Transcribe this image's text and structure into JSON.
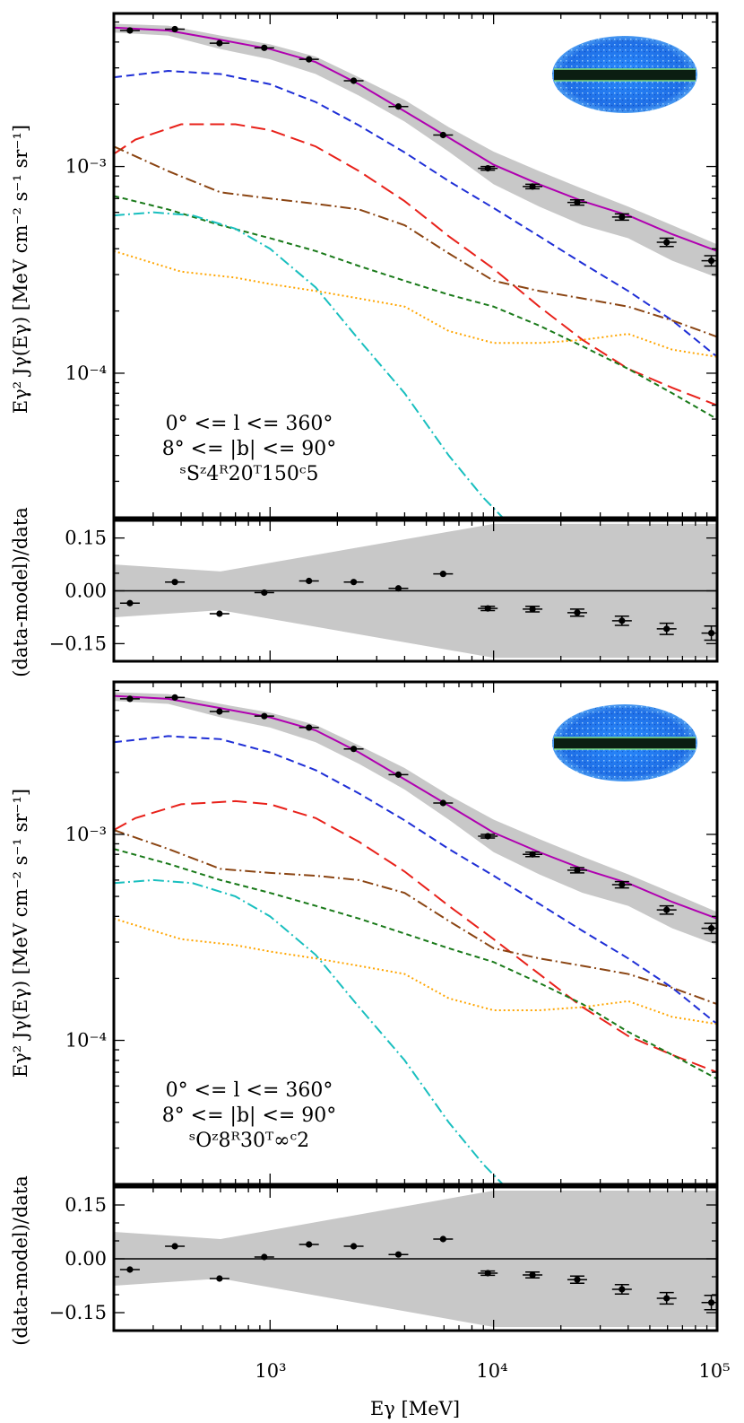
{
  "figure": {
    "xlabel": "Eγ [MeV]",
    "ylabel_spectrum": "Eγ² Jγ(Eγ) [MeV cm⁻² s⁻¹ sr⁻¹]",
    "ylabel_residual": "(data-model)/data",
    "x_tick_labels": [
      "10³",
      "10⁴",
      "10⁵"
    ],
    "y_tick_labels_spectrum": [
      "10⁻³",
      "10⁻⁴"
    ],
    "y_tick_labels_residual": [
      "0.15",
      "0.00",
      "−0.15"
    ],
    "colors": {
      "total": "#b000b0",
      "pion": "#1f2fd6",
      "ic": "#e8211a",
      "isotropic": "#8b4513",
      "bremss": "#1a7a1a",
      "sources": "#19bfbf",
      "other": "#ffa500",
      "band": "#c8c8c8",
      "points": "#000000"
    }
  },
  "chart_data": [
    {
      "type": "line",
      "title": "",
      "xlabel": "Eγ [MeV]",
      "ylabel": "Eγ² Jγ(Eγ) [MeV cm⁻² s⁻¹ sr⁻¹]",
      "xscale": "log",
      "yscale": "log",
      "xlim": [
        200,
        100000
      ],
      "ylim": [
        2e-05,
        0.0055
      ],
      "annotation": [
        "0° <= l <= 360°",
        "8° <= |b| <= 90°",
        "ˢSᶻ4ᴿ20ᵀ150ᶜ5"
      ],
      "inset": "all-sky map",
      "band": {
        "x": [
          200,
          350,
          600,
          1000,
          1600,
          2500,
          4000,
          6300,
          10000,
          16000,
          25000,
          40000,
          63000,
          100000
        ],
        "low": [
          0.00445,
          0.0043,
          0.0037,
          0.0033,
          0.0028,
          0.0022,
          0.00165,
          0.00118,
          0.00082,
          0.00064,
          0.00052,
          0.00045,
          0.00035,
          0.00029
        ],
        "high": [
          0.0049,
          0.0048,
          0.0043,
          0.0039,
          0.0034,
          0.0027,
          0.0021,
          0.00155,
          0.00118,
          0.00095,
          0.00078,
          0.00064,
          0.00052,
          0.00042
        ]
      },
      "points": {
        "x": [
          236,
          375,
          594,
          942,
          1493,
          2366,
          3751,
          5945,
          9423,
          14935,
          23671,
          37517,
          59461,
          94240
        ],
        "y": [
          0.00455,
          0.00462,
          0.00395,
          0.00375,
          0.0033,
          0.0026,
          0.00195,
          0.00142,
          0.00098,
          0.0008,
          0.00067,
          0.00057,
          0.00043,
          0.00035
        ],
        "err": [
          6e-05,
          6e-05,
          5e-05,
          5e-05,
          4e-05,
          3e-05,
          3e-05,
          2e-05,
          2e-05,
          2e-05,
          2e-05,
          2e-05,
          2e-05,
          2e-05
        ]
      },
      "series": [
        {
          "name": "total",
          "color": "#b000b0",
          "style": "solid",
          "x": [
            200,
            350,
            600,
            1000,
            1600,
            2500,
            4000,
            6300,
            10000,
            16000,
            25000,
            40000,
            63000,
            100000
          ],
          "values": [
            0.0047,
            0.00455,
            0.0041,
            0.0037,
            0.0032,
            0.0025,
            0.00185,
            0.00138,
            0.00102,
            0.00082,
            0.00068,
            0.00058,
            0.00047,
            0.00039
          ]
        },
        {
          "name": "pion",
          "color": "#1f2fd6",
          "style": "dashed",
          "x": [
            200,
            350,
            600,
            1000,
            1600,
            2500,
            4000,
            6300,
            10000,
            16000,
            25000,
            40000,
            63000,
            100000
          ],
          "values": [
            0.0027,
            0.0029,
            0.0028,
            0.0025,
            0.00205,
            0.00158,
            0.00117,
            0.00085,
            0.00063,
            0.00046,
            0.00034,
            0.00025,
            0.00018,
            0.00012
          ]
        },
        {
          "name": "inverse-compton",
          "color": "#e8211a",
          "style": "longdash",
          "x": [
            200,
            250,
            400,
            700,
            1000,
            1600,
            2500,
            4000,
            6300,
            10000,
            16000,
            25000,
            40000,
            63000,
            100000
          ],
          "values": [
            0.00115,
            0.00135,
            0.0016,
            0.0016,
            0.0015,
            0.00125,
            0.00095,
            0.00068,
            0.00046,
            0.00032,
            0.00021,
            0.000145,
            0.000105,
            8.5e-05,
            7e-05
          ]
        },
        {
          "name": "isotropic",
          "color": "#8b4513",
          "style": "dashdot",
          "x": [
            200,
            350,
            600,
            1000,
            1600,
            2500,
            4000,
            6300,
            10000,
            16000,
            25000,
            40000,
            63000,
            100000
          ],
          "values": [
            0.00125,
            0.00095,
            0.00075,
            0.0007,
            0.00066,
            0.00062,
            0.00052,
            0.00038,
            0.00028,
            0.00025,
            0.00023,
            0.00021,
            0.00018,
            0.00015
          ]
        },
        {
          "name": "bremsstrahlung",
          "color": "#1a7a1a",
          "style": "shortdash",
          "x": [
            200,
            350,
            600,
            1000,
            1600,
            2500,
            4000,
            6300,
            10000,
            16000,
            25000,
            40000,
            63000,
            100000
          ],
          "values": [
            0.00072,
            0.00062,
            0.00052,
            0.00045,
            0.00039,
            0.00033,
            0.00028,
            0.00024,
            0.00021,
            0.00017,
            0.000135,
            0.000105,
            8e-05,
            6e-05
          ]
        },
        {
          "name": "sources",
          "color": "#19bfbf",
          "style": "dashdot",
          "x": [
            200,
            300,
            450,
            700,
            1000,
            1600,
            2500,
            4000,
            6300,
            9000,
            11000
          ],
          "values": [
            0.00058,
            0.0006,
            0.00058,
            0.0005,
            0.0004,
            0.00026,
            0.000145,
            8e-05,
            4e-05,
            2.5e-05,
            2e-05
          ]
        },
        {
          "name": "other",
          "color": "#ffa500",
          "style": "dotted",
          "x": [
            200,
            400,
            700,
            1000,
            1600,
            2500,
            4000,
            6300,
            10000,
            16000,
            25000,
            40000,
            63000,
            100000
          ],
          "values": [
            0.00039,
            0.00031,
            0.00029,
            0.00027,
            0.00025,
            0.00023,
            0.00021,
            0.00016,
            0.00014,
            0.00014,
            0.000145,
            0.000155,
            0.00013,
            0.00012
          ]
        }
      ]
    },
    {
      "type": "scatter",
      "title": "",
      "xlabel": "",
      "ylabel": "(data-model)/data",
      "xscale": "log",
      "yscale": "linear",
      "xlim": [
        200,
        100000
      ],
      "ylim": [
        -0.2,
        0.2
      ],
      "band": {
        "x": [
          200,
          600,
          10000,
          100000
        ],
        "low": [
          -0.075,
          -0.055,
          -0.19,
          -0.19
        ],
        "high": [
          0.075,
          0.055,
          0.19,
          0.19
        ]
      },
      "points": {
        "x": [
          236,
          375,
          594,
          942,
          1493,
          2366,
          3751,
          5945,
          9423,
          14935,
          23671,
          37517,
          59461,
          94240
        ],
        "y": [
          -0.035,
          0.025,
          -0.065,
          -0.005,
          0.028,
          0.025,
          0.007,
          0.048,
          -0.05,
          -0.052,
          -0.062,
          -0.085,
          -0.108,
          -0.12
        ],
        "err": [
          0.003,
          0.003,
          0.003,
          0.003,
          0.003,
          0.003,
          0.004,
          0.005,
          0.006,
          0.008,
          0.01,
          0.013,
          0.016,
          0.02
        ]
      }
    },
    {
      "type": "line",
      "title": "",
      "xlabel": "Eγ [MeV]",
      "ylabel": "Eγ² Jγ(Eγ) [MeV cm⁻² s⁻¹ sr⁻¹]",
      "xscale": "log",
      "yscale": "log",
      "xlim": [
        200,
        100000
      ],
      "ylim": [
        2e-05,
        0.0055
      ],
      "annotation": [
        "0° <= l <= 360°",
        "8° <= |b| <= 90°",
        "ˢOᶻ8ᴿ30ᵀ∞ᶜ2"
      ],
      "inset": "all-sky map",
      "band": {
        "x": [
          200,
          350,
          600,
          1000,
          1600,
          2500,
          4000,
          6300,
          10000,
          16000,
          25000,
          40000,
          63000,
          100000
        ],
        "low": [
          0.00445,
          0.0043,
          0.0037,
          0.0033,
          0.0028,
          0.0022,
          0.00165,
          0.00118,
          0.00082,
          0.00064,
          0.00052,
          0.00045,
          0.00035,
          0.00029
        ],
        "high": [
          0.0049,
          0.0048,
          0.0043,
          0.0039,
          0.0034,
          0.0027,
          0.0021,
          0.00155,
          0.00118,
          0.00095,
          0.00078,
          0.00064,
          0.00052,
          0.00042
        ]
      },
      "points": {
        "x": [
          236,
          375,
          594,
          942,
          1493,
          2366,
          3751,
          5945,
          9423,
          14935,
          23671,
          37517,
          59461,
          94240
        ],
        "y": [
          0.00455,
          0.00462,
          0.00395,
          0.00375,
          0.0033,
          0.0026,
          0.00195,
          0.00142,
          0.00098,
          0.0008,
          0.00067,
          0.00057,
          0.00043,
          0.00035
        ],
        "err": [
          6e-05,
          6e-05,
          5e-05,
          5e-05,
          4e-05,
          3e-05,
          3e-05,
          2e-05,
          2e-05,
          2e-05,
          2e-05,
          2e-05,
          2e-05,
          2e-05
        ]
      },
      "series": [
        {
          "name": "total",
          "color": "#b000b0",
          "style": "solid",
          "x": [
            200,
            350,
            600,
            1000,
            1600,
            2500,
            4000,
            6300,
            10000,
            16000,
            25000,
            40000,
            63000,
            100000
          ],
          "values": [
            0.0047,
            0.00455,
            0.0041,
            0.0037,
            0.0032,
            0.0025,
            0.00185,
            0.00138,
            0.00102,
            0.00082,
            0.00068,
            0.00058,
            0.00047,
            0.00039
          ]
        },
        {
          "name": "pion",
          "color": "#1f2fd6",
          "style": "dashed",
          "x": [
            200,
            350,
            600,
            1000,
            1600,
            2500,
            4000,
            6300,
            10000,
            16000,
            25000,
            40000,
            63000,
            100000
          ],
          "values": [
            0.0028,
            0.003,
            0.0029,
            0.0025,
            0.00205,
            0.00158,
            0.00117,
            0.00085,
            0.00063,
            0.00046,
            0.00034,
            0.00025,
            0.00018,
            0.00012
          ]
        },
        {
          "name": "inverse-compton",
          "color": "#e8211a",
          "style": "longdash",
          "x": [
            200,
            250,
            400,
            700,
            1000,
            1600,
            2500,
            4000,
            6300,
            10000,
            16000,
            25000,
            40000,
            63000,
            100000
          ],
          "values": [
            0.00105,
            0.0012,
            0.0014,
            0.00145,
            0.0014,
            0.0012,
            0.00092,
            0.00066,
            0.00045,
            0.00031,
            0.00021,
            0.000145,
            0.000105,
            8.5e-05,
            7e-05
          ]
        },
        {
          "name": "isotropic",
          "color": "#8b4513",
          "style": "dashdot",
          "x": [
            200,
            350,
            600,
            1000,
            1600,
            2500,
            4000,
            6300,
            10000,
            16000,
            25000,
            40000,
            63000,
            100000
          ],
          "values": [
            0.00105,
            0.00085,
            0.00068,
            0.00065,
            0.00063,
            0.0006,
            0.00052,
            0.00038,
            0.00028,
            0.00025,
            0.00023,
            0.00021,
            0.00018,
            0.00015
          ]
        },
        {
          "name": "bremsstrahlung",
          "color": "#1a7a1a",
          "style": "shortdash",
          "x": [
            200,
            350,
            600,
            1000,
            1600,
            2500,
            4000,
            6300,
            10000,
            16000,
            25000,
            40000,
            63000,
            100000
          ],
          "values": [
            0.00085,
            0.00072,
            0.0006,
            0.00052,
            0.00045,
            0.00039,
            0.00033,
            0.00028,
            0.00024,
            0.00019,
            0.00015,
            0.00011,
            8.5e-05,
            6.5e-05
          ]
        },
        {
          "name": "sources",
          "color": "#19bfbf",
          "style": "dashdot",
          "x": [
            200,
            300,
            450,
            700,
            1000,
            1600,
            2500,
            4000,
            6300,
            9000,
            11000
          ],
          "values": [
            0.00058,
            0.0006,
            0.00058,
            0.0005,
            0.0004,
            0.00026,
            0.000145,
            8e-05,
            4e-05,
            2.5e-05,
            2e-05
          ]
        },
        {
          "name": "other",
          "color": "#ffa500",
          "style": "dotted",
          "x": [
            200,
            400,
            700,
            1000,
            1600,
            2500,
            4000,
            6300,
            10000,
            16000,
            25000,
            40000,
            63000,
            100000
          ],
          "values": [
            0.00039,
            0.00031,
            0.00029,
            0.00027,
            0.00025,
            0.00023,
            0.00021,
            0.00016,
            0.00014,
            0.00014,
            0.000145,
            0.000155,
            0.00013,
            0.00012
          ]
        }
      ]
    },
    {
      "type": "scatter",
      "title": "",
      "xlabel": "Eγ [MeV]",
      "ylabel": "(data-model)/data",
      "xscale": "log",
      "yscale": "linear",
      "xlim": [
        200,
        100000
      ],
      "ylim": [
        -0.2,
        0.2
      ],
      "band": {
        "x": [
          200,
          600,
          10000,
          100000
        ],
        "low": [
          -0.075,
          -0.055,
          -0.19,
          -0.19
        ],
        "high": [
          0.075,
          0.055,
          0.19,
          0.19
        ]
      },
      "points": {
        "x": [
          236,
          375,
          594,
          942,
          1493,
          2366,
          3751,
          5945,
          9423,
          14935,
          23671,
          37517,
          59461,
          94240
        ],
        "y": [
          -0.03,
          0.035,
          -0.055,
          0.005,
          0.04,
          0.035,
          0.012,
          0.055,
          -0.04,
          -0.045,
          -0.058,
          -0.085,
          -0.11,
          -0.122
        ],
        "err": [
          0.003,
          0.003,
          0.003,
          0.003,
          0.003,
          0.003,
          0.004,
          0.005,
          0.006,
          0.008,
          0.01,
          0.013,
          0.016,
          0.02
        ]
      }
    }
  ]
}
